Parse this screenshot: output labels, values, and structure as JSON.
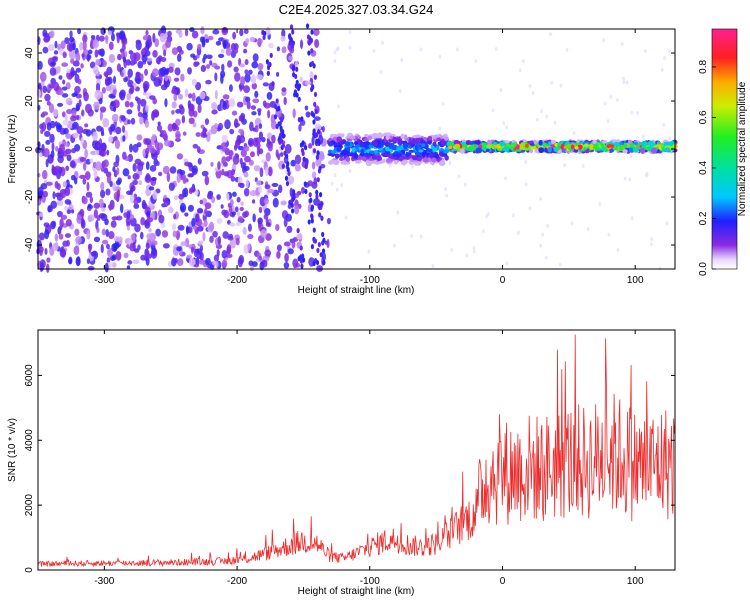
{
  "title": "C2E4.2025.327.03.34.G24",
  "colors": {
    "snr_line": "#ee2b2b",
    "background": "#ffffff",
    "axis": "#000000"
  },
  "chart_data": [
    {
      "type": "heatmap",
      "xlabel": "Height of straight line (km)",
      "ylabel": "Frequency (Hz)",
      "xlim": [
        -350,
        130
      ],
      "ylim": [
        -50,
        50
      ],
      "xticks": [
        -300,
        -200,
        -100,
        0,
        100
      ],
      "yticks": [
        -40,
        -20,
        0,
        20,
        40
      ],
      "colorbar": {
        "label": "Normalized spectral amplitude",
        "range": [
          0,
          0.95
        ],
        "ticks": [
          0.0,
          0.2,
          0.4,
          0.6,
          0.8
        ],
        "colormap": "rainbow (violet → blue → cyan → green → yellow → red → magenta)"
      },
      "features": [
        {
          "description_ref": "noise",
          "x_range": [
            -350,
            -130
          ],
          "y_range": [
            -50,
            50
          ],
          "amplitude": 0.1
        },
        {
          "description_ref": "signal_band",
          "x_range": [
            -130,
            -40
          ],
          "y_center": 0,
          "y_halfwidth": 6,
          "amplitude": 0.3
        },
        {
          "description_ref": "signal_band",
          "x_range": [
            -40,
            130
          ],
          "y_center": 1,
          "y_halfwidth": 2,
          "amplitude": 0.85
        }
      ]
    },
    {
      "type": "line",
      "xlabel": "Height of straight line (km)",
      "ylabel": "SNR (10 * v/v)",
      "xlim": [
        -350,
        130
      ],
      "ylim": [
        0,
        7400
      ],
      "xticks": [
        -300,
        -200,
        -100,
        0,
        100
      ],
      "yticks": [
        0,
        2000,
        4000,
        6000
      ],
      "series": [
        {
          "x": [
            -350,
            -330,
            -300,
            -270,
            -240,
            -210,
            -195,
            -180,
            -170,
            -160,
            -150,
            -140,
            -130,
            -120,
            -110,
            -100,
            -90,
            -80,
            -70,
            -60,
            -50,
            -40,
            -30,
            -20,
            -15,
            -10,
            0,
            10,
            20,
            30,
            40,
            50,
            60,
            70,
            80,
            90,
            100,
            110,
            120,
            130
          ],
          "values": [
            180,
            200,
            210,
            220,
            240,
            270,
            330,
            480,
            620,
            760,
            900,
            820,
            420,
            350,
            520,
            700,
            880,
            950,
            760,
            700,
            820,
            1100,
            1450,
            1800,
            2600,
            2900,
            3000,
            3050,
            3150,
            3100,
            3250,
            3350,
            3300,
            3400,
            3600,
            3500,
            3250,
            3200,
            3300,
            3350
          ]
        }
      ]
    }
  ]
}
